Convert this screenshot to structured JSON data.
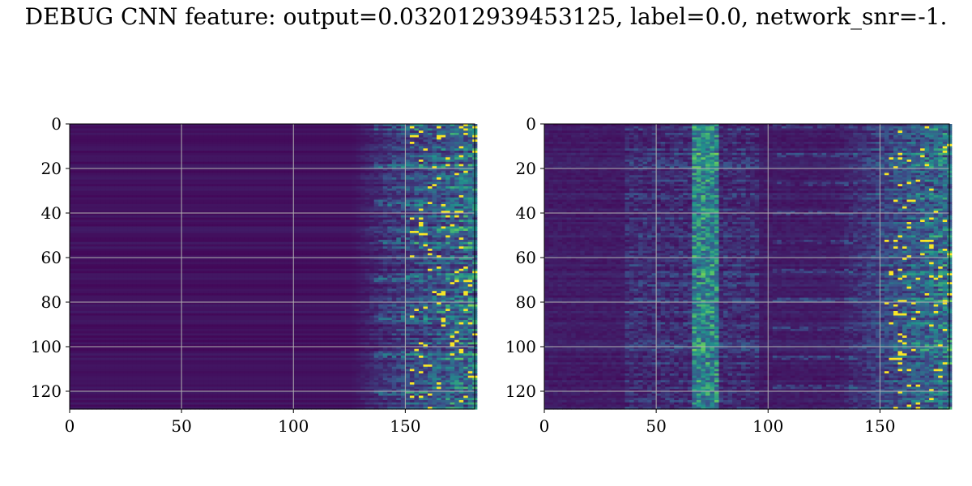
{
  "figure": {
    "title": "DEBUG CNN feature: output=0.032012939453125, label=0.0, network_snr=-1."
  },
  "chart_data": [
    {
      "type": "heatmap",
      "title": "",
      "xlabel": "",
      "ylabel": "",
      "xlim": [
        0,
        181
      ],
      "ylim": [
        128,
        0
      ],
      "x_ticks": [
        0,
        50,
        100,
        150
      ],
      "y_ticks": [
        0,
        20,
        40,
        60,
        80,
        100,
        120
      ],
      "grid": true,
      "colormap": "viridis",
      "colormap_stops": [
        "#440154",
        "#3b528b",
        "#21918c",
        "#5ec962",
        "#fde725"
      ],
      "activity_band_x": [
        130,
        181
      ],
      "description_values": "rows of mostly dark values with bright activity concentrated at x 130-181"
    },
    {
      "type": "heatmap",
      "title": "",
      "xlabel": "",
      "ylabel": "",
      "xlim": [
        0,
        181
      ],
      "ylim": [
        128,
        0
      ],
      "x_ticks": [
        0,
        50,
        100,
        150
      ],
      "y_ticks": [
        0,
        20,
        40,
        60,
        80,
        100,
        120
      ],
      "grid": true,
      "colormap": "viridis",
      "colormap_stops": [
        "#440154",
        "#3b528b",
        "#21918c",
        "#5ec962",
        "#fde725"
      ],
      "activity_band_x": [
        [
          35,
          90
        ],
        [
          140,
          181
        ]
      ],
      "description_values": "noisy rows with a vertical bright band near x 65-75 and activity at x 140-181"
    }
  ]
}
